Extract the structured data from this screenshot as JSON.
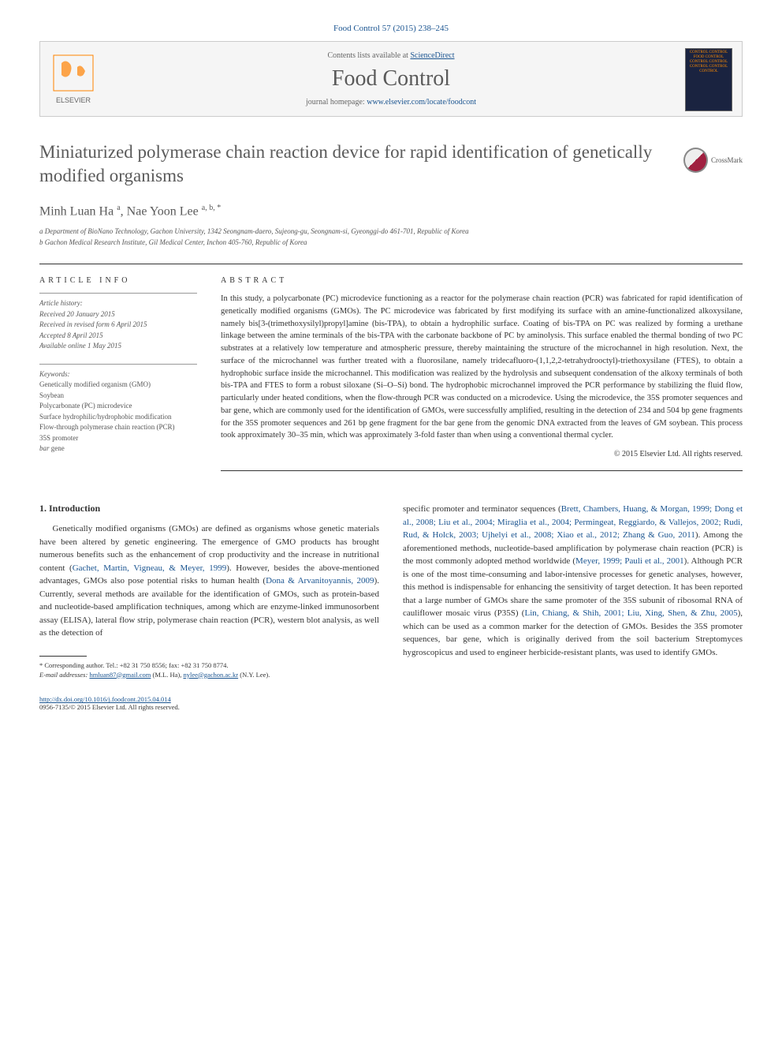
{
  "citation": "Food Control 57 (2015) 238–245",
  "contents_line": "Contents lists available at ",
  "contents_link": "ScienceDirect",
  "journal_name": "Food Control",
  "homepage_label": "journal homepage: ",
  "homepage_url": "www.elsevier.com/locate/foodcont",
  "cover_text": "CONTROL CONTROL FOOD CONTROL CONTROL CONTROL CONTROL CONTROL CONTROL",
  "crossmark_label": "CrossMark",
  "title": "Miniaturized polymerase chain reaction device for rapid identification of genetically modified organisms",
  "authors_html": "Minh Luan Ha <sup>a</sup>, Nae Yoon Lee <sup>a, b, *</sup>",
  "affil_a": "a Department of BioNano Technology, Gachon University, 1342 Seongnam-daero, Sujeong-gu, Seongnam-si, Gyeonggi-do 461-701, Republic of Korea",
  "affil_b": "b Gachon Medical Research Institute, Gil Medical Center, Inchon 405-760, Republic of Korea",
  "article_info_label": "ARTICLE INFO",
  "abstract_label": "ABSTRACT",
  "history": {
    "label": "Article history:",
    "received": "Received 20 January 2015",
    "revised": "Received in revised form 6 April 2015",
    "accepted": "Accepted 8 April 2015",
    "online": "Available online 1 May 2015"
  },
  "keywords_label": "Keywords:",
  "keywords": [
    "Genetically modified organism (GMO)",
    "Soybean",
    "Polycarbonate (PC) microdevice",
    "Surface hydrophilic/hydrophobic modification",
    "Flow-through polymerase chain reaction (PCR)",
    "35S promoter",
    "bar gene"
  ],
  "abstract": "In this study, a polycarbonate (PC) microdevice functioning as a reactor for the polymerase chain reaction (PCR) was fabricated for rapid identification of genetically modified organisms (GMOs). The PC microdevice was fabricated by first modifying its surface with an amine-functionalized alkoxysilane, namely bis[3-(trimethoxysilyl)propyl]amine (bis-TPA), to obtain a hydrophilic surface. Coating of bis-TPA on PC was realized by forming a urethane linkage between the amine terminals of the bis-TPA with the carbonate backbone of PC by aminolysis. This surface enabled the thermal bonding of two PC substrates at a relatively low temperature and atmospheric pressure, thereby maintaining the structure of the microchannel in high resolution. Next, the surface of the microchannel was further treated with a fluorosilane, namely tridecafluoro-(1,1,2,2-tetrahydrooctyl)-triethoxysilane (FTES), to obtain a hydrophobic surface inside the microchannel. This modification was realized by the hydrolysis and subsequent condensation of the alkoxy terminals of both bis-TPA and FTES to form a robust siloxane (Si–O–Si) bond. The hydrophobic microchannel improved the PCR performance by stabilizing the fluid flow, particularly under heated conditions, when the flow-through PCR was conducted on a microdevice. Using the microdevice, the 35S promoter sequences and bar gene, which are commonly used for the identification of GMOs, were successfully amplified, resulting in the detection of 234 and 504 bp gene fragments for the 35S promoter sequences and 261 bp gene fragment for the bar gene from the genomic DNA extracted from the leaves of GM soybean. This process took approximately 30–35 min, which was approximately 3-fold faster than when using a conventional thermal cycler.",
  "copyright": "© 2015 Elsevier Ltd. All rights reserved.",
  "intro_heading": "1. Introduction",
  "intro_col1_pre": "Genetically modified organisms (GMOs) are defined as organisms whose genetic materials have been altered by genetic engineering. The emergence of GMO products has brought numerous benefits such as the enhancement of crop productivity and the increase in nutritional content (",
  "ref1": "Gachet, Martin, Vigneau, & Meyer, 1999",
  "intro_col1_mid1": "). However, besides the above-mentioned advantages, GMOs also pose potential risks to human health (",
  "ref2": "Dona & Arvanitoyannis, 2009",
  "intro_col1_post": "). Currently, several methods are available for the identification of GMOs, such as protein-based and nucleotide-based amplification techniques, among which are enzyme-linked immunosorbent assay (ELISA), lateral flow strip, polymerase chain reaction (PCR), western blot analysis, as well as the detection of",
  "intro_col2_pre": "specific promoter and terminator sequences (",
  "ref3": "Brett, Chambers, Huang, & Morgan, 1999; Dong et al., 2008; Liu et al., 2004; Miraglia et al., 2004; Permingeat, Reggiardo, & Vallejos, 2002; Rudi, Rud, & Holck, 2003; Ujhelyi et al., 2008; Xiao et al., 2012; Zhang & Guo, 2011",
  "intro_col2_mid1": "). Among the aforementioned methods, nucleotide-based amplification by polymerase chain reaction (PCR) is the most commonly adopted method worldwide (",
  "ref4": "Meyer, 1999; Pauli et al., 2001",
  "intro_col2_mid2": "). Although PCR is one of the most time-consuming and labor-intensive processes for genetic analyses, however, this method is indispensable for enhancing the sensitivity of target detection. It has been reported that a large number of GMOs share the same promoter of the 35S subunit of ribosomal RNA of cauliflower mosaic virus (P35S) (",
  "ref5": "Lin, Chiang, & Shih, 2001; Liu, Xing, Shen, & Zhu, 2005",
  "intro_col2_post": "), which can be used as a common marker for the detection of GMOs. Besides the 35S promoter sequences, bar gene, which is originally derived from the soil bacterium Streptomyces hygroscopicus and used to engineer herbicide-resistant plants, was used to identify GMOs.",
  "footnote_corr": "* Corresponding author. Tel.: +82 31 750 8556; fax: +82 31 750 8774.",
  "footnote_email_label": "E-mail addresses:",
  "email1": "hmluan87@gmail.com",
  "email1_who": "(M.L. Ha),",
  "email2": "nylee@gachon.ac.kr",
  "email2_who": "(N.Y. Lee).",
  "doi_url": "http://dx.doi.org/10.1016/j.foodcont.2015.04.014",
  "issn_line": "0956-7135/© 2015 Elsevier Ltd. All rights reserved.",
  "colors": {
    "link": "#1a5490",
    "text": "#333333",
    "muted": "#5a5a5a",
    "border": "#cccccc",
    "box_bg": "#f5f5f5",
    "elsevier_orange": "#ff8200"
  }
}
